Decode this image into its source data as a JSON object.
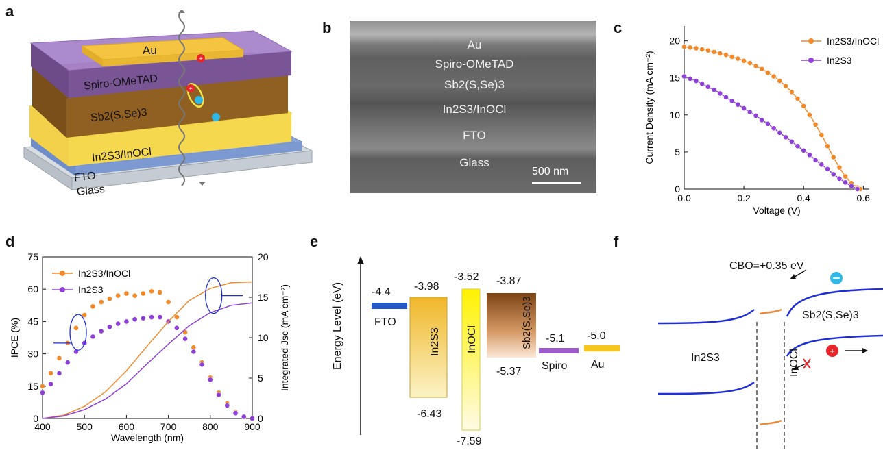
{
  "panels": {
    "a": {
      "letter": "a",
      "layers": [
        "Au",
        "Spiro-OMeTAD",
        "Sb2(S,Se)3",
        "In2S3/InOCl",
        "FTO",
        "Glass"
      ]
    },
    "b": {
      "letter": "b",
      "layers": [
        "Au",
        "Spiro-OMeTAD",
        "Sb2(S,Se)3",
        "In2S3/InOCl",
        "FTO",
        "Glass"
      ],
      "scale_bar": "500 nm"
    },
    "c": {
      "letter": "c",
      "xlabel": "Voltage (V)",
      "ylabel": "Current Density (mA cm⁻²)",
      "legend": [
        "In2S3/InOCl",
        "In2S3"
      ]
    },
    "d": {
      "letter": "d",
      "xlabel": "Wavelength (nm)",
      "ylabel_left": "IPCE (%)",
      "ylabel_right": "Integrated Jsc (mA cm⁻²)",
      "legend": [
        "In2S3/InOCl",
        "In2S3"
      ]
    },
    "e": {
      "letter": "e",
      "ylabel": "Energy Level (eV)",
      "levels": {
        "fto": "-4.4",
        "fto_label": "FTO",
        "in2s3_top": "-3.98",
        "in2s3_bottom": "-6.43",
        "in2s3_label": "In2S3",
        "inocl_top": "-3.52",
        "inocl_bottom": "-7.59",
        "inocl_label": "InOCl",
        "sbsse_top": "-3.87",
        "sbsse_bottom": "-5.37",
        "sbsse_label": "Sb2(S,Se)3",
        "spiro": "-5.1",
        "spiro_label": "Spiro",
        "au": "-5.0",
        "au_label": "Au"
      }
    },
    "f": {
      "letter": "f",
      "cbo": "CBO=+0.35 eV",
      "left_label": "In2S3",
      "middle_label": "InOCl",
      "right_label": "Sb2(S,Se)3"
    }
  },
  "chart_data": [
    {
      "panel": "c",
      "type": "line",
      "xlabel": "Voltage (V)",
      "ylabel": "Current Density (mA cm⁻²)",
      "xlim": [
        0,
        0.62
      ],
      "ylim": [
        0,
        22
      ],
      "xticks": [
        0.0,
        0.2,
        0.4,
        0.6
      ],
      "xtick_labels": [
        "0.0",
        "0.2",
        "0.4",
        "0.6"
      ],
      "yticks": [
        0,
        5,
        10,
        15,
        20
      ],
      "legend_position": "top-right",
      "series": [
        {
          "name": "In2S3/InOCl",
          "color": "#f0892a",
          "x": [
            0.0,
            0.02,
            0.04,
            0.06,
            0.08,
            0.1,
            0.12,
            0.14,
            0.16,
            0.18,
            0.2,
            0.22,
            0.24,
            0.26,
            0.28,
            0.3,
            0.32,
            0.34,
            0.36,
            0.38,
            0.4,
            0.42,
            0.44,
            0.46,
            0.48,
            0.5,
            0.52,
            0.54,
            0.56,
            0.58,
            0.59
          ],
          "y": [
            19.2,
            19.1,
            19.0,
            18.85,
            18.7,
            18.5,
            18.3,
            18.1,
            17.85,
            17.6,
            17.3,
            17.0,
            16.6,
            16.2,
            15.7,
            15.2,
            14.6,
            13.9,
            13.1,
            12.2,
            11.2,
            10.0,
            8.7,
            7.3,
            5.8,
            4.3,
            2.9,
            1.7,
            0.8,
            0.2,
            0.0
          ]
        },
        {
          "name": "In2S3",
          "color": "#8e3fd6",
          "x": [
            0.0,
            0.02,
            0.04,
            0.06,
            0.08,
            0.1,
            0.12,
            0.14,
            0.16,
            0.18,
            0.2,
            0.22,
            0.24,
            0.26,
            0.28,
            0.3,
            0.32,
            0.34,
            0.36,
            0.38,
            0.4,
            0.42,
            0.44,
            0.46,
            0.48,
            0.5,
            0.52,
            0.54,
            0.56,
            0.58
          ],
          "y": [
            15.2,
            14.9,
            14.6,
            14.2,
            13.8,
            13.4,
            12.9,
            12.4,
            11.9,
            11.4,
            10.9,
            10.4,
            9.9,
            9.3,
            8.8,
            8.2,
            7.6,
            7.0,
            6.4,
            5.8,
            5.2,
            4.6,
            3.9,
            3.3,
            2.7,
            2.0,
            1.4,
            0.9,
            0.4,
            0.0
          ]
        }
      ]
    },
    {
      "panel": "d",
      "type": "line",
      "xlabel": "Wavelength (nm)",
      "ylabel_left": "IPCE (%)",
      "ylabel_right": "Integrated Jsc (mA cm⁻²)",
      "xlim": [
        400,
        900
      ],
      "ylim_left": [
        0,
        75
      ],
      "ylim_right": [
        0,
        20
      ],
      "xticks": [
        400,
        500,
        600,
        700,
        800,
        900
      ],
      "yticks_left": [
        0,
        15,
        30,
        45,
        60,
        75
      ],
      "yticks_right": [
        0,
        5,
        10,
        15,
        20
      ],
      "legend_position": "top-left",
      "series": [
        {
          "name": "In2S3/InOCl",
          "axis": "left",
          "color": "#f0892a",
          "x": [
            400,
            420,
            440,
            460,
            480,
            500,
            520,
            540,
            560,
            580,
            600,
            620,
            640,
            660,
            680,
            700,
            720,
            740,
            760,
            780,
            800,
            820,
            840,
            860,
            880,
            900
          ],
          "y": [
            15,
            21,
            28,
            35,
            42,
            48,
            52,
            54,
            55.5,
            57,
            58,
            57,
            58,
            59,
            58.5,
            54,
            47,
            40,
            33,
            26,
            19,
            12,
            7,
            3,
            1,
            0
          ]
        },
        {
          "name": "In2S3",
          "axis": "left",
          "color": "#8e3fd6",
          "x": [
            400,
            420,
            440,
            460,
            480,
            500,
            520,
            540,
            560,
            580,
            600,
            620,
            640,
            660,
            680,
            700,
            720,
            740,
            760,
            780,
            800,
            820,
            840,
            860,
            880,
            900
          ],
          "y": [
            12,
            16,
            21,
            26,
            31,
            35,
            38,
            40.5,
            42.5,
            44,
            45,
            46,
            46.5,
            47,
            47,
            45,
            42,
            37,
            31,
            25,
            18,
            11,
            6,
            2.5,
            0.8,
            0
          ]
        },
        {
          "name": "In2S3/InOCl integrated",
          "axis": "right",
          "color": "#f0892a",
          "x": [
            400,
            450,
            500,
            550,
            600,
            650,
            700,
            750,
            800,
            850,
            900
          ],
          "y": [
            0,
            0.4,
            1.5,
            3.3,
            5.9,
            9.0,
            12.0,
            14.6,
            16.1,
            16.8,
            16.9
          ]
        },
        {
          "name": "In2S3 integrated",
          "axis": "right",
          "color": "#8e3fd6",
          "x": [
            400,
            450,
            500,
            550,
            600,
            650,
            700,
            750,
            800,
            850,
            900
          ],
          "y": [
            0,
            0.3,
            1.1,
            2.4,
            4.3,
            6.8,
            9.2,
            11.5,
            13.1,
            14.0,
            14.3
          ]
        }
      ]
    }
  ]
}
